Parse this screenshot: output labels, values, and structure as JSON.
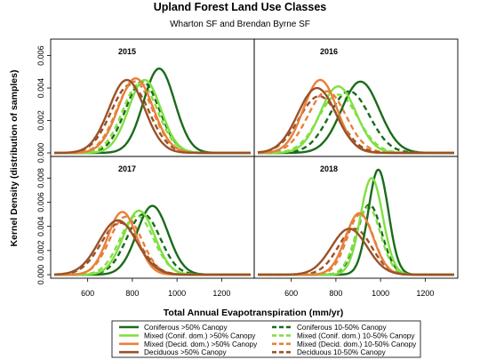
{
  "chart_data": {
    "type": "line",
    "title": "Upland Forest Land Use Classes",
    "subtitle": "Wharton SF and Brendan Byrne SF",
    "xlabel": "Total Annual Evapotranspiration (mm/yr)",
    "ylabel": "Kernel Density (distribution of samples)",
    "xlim": [
      450,
      1330
    ],
    "x_ticks": [
      "600",
      "800",
      "1000",
      "1200"
    ],
    "panels": [
      {
        "label": "2015",
        "ylim": [
          0,
          0.0068
        ],
        "y_ticks": [
          "0.000",
          "0.002",
          "0.004",
          "0.006"
        ],
        "series": [
          {
            "name": "Coniferous >50% Canopy",
            "mean": 920,
            "sd": 70,
            "peak": 0.0052
          },
          {
            "name": "Mixed (Conif. dom.) >50% Canopy",
            "mean": 855,
            "sd": 72,
            "peak": 0.0045
          },
          {
            "name": "Mixed (Decid. dom.) >50% Canopy",
            "mean": 815,
            "sd": 78,
            "peak": 0.0046
          },
          {
            "name": "Deciduous >50% Canopy",
            "mean": 775,
            "sd": 80,
            "peak": 0.0045
          },
          {
            "name": "Coniferous 10-50% Canopy",
            "mean": 845,
            "sd": 76,
            "peak": 0.0044
          },
          {
            "name": "Mixed (Conif. dom.) 10-50% Canopy",
            "mean": 835,
            "sd": 78,
            "peak": 0.0043
          },
          {
            "name": "Mixed (Decid. dom.) 10-50% Canopy",
            "mean": 810,
            "sd": 80,
            "peak": 0.0044
          },
          {
            "name": "Deciduous 10-50% Canopy",
            "mean": 790,
            "sd": 85,
            "peak": 0.0042
          }
        ]
      },
      {
        "label": "2016",
        "ylim": [
          0,
          0.0068
        ],
        "y_ticks": [
          "0.000",
          "0.002",
          "0.004",
          "0.006"
        ],
        "series": [
          {
            "name": "Coniferous >50% Canopy",
            "mean": 910,
            "sd": 85,
            "peak": 0.0044
          },
          {
            "name": "Mixed (Conif. dom.) >50% Canopy",
            "mean": 810,
            "sd": 80,
            "peak": 0.0041
          },
          {
            "name": "Mixed (Decid. dom.) >50% Canopy",
            "mean": 730,
            "sd": 75,
            "peak": 0.0045
          },
          {
            "name": "Deciduous >50% Canopy",
            "mean": 715,
            "sd": 85,
            "peak": 0.004
          },
          {
            "name": "Coniferous 10-50% Canopy",
            "mean": 860,
            "sd": 90,
            "peak": 0.0038
          },
          {
            "name": "Mixed (Conif. dom.) 10-50% Canopy",
            "mean": 810,
            "sd": 88,
            "peak": 0.0036
          },
          {
            "name": "Mixed (Decid. dom.) 10-50% Canopy",
            "mean": 760,
            "sd": 85,
            "peak": 0.0038
          },
          {
            "name": "Deciduous 10-50% Canopy",
            "mean": 725,
            "sd": 90,
            "peak": 0.0035
          }
        ]
      },
      {
        "label": "2017",
        "ylim": [
          0,
          0.0095
        ],
        "y_ticks": [
          "0.000",
          "0.002",
          "0.004",
          "0.006",
          "0.008"
        ],
        "series": [
          {
            "name": "Coniferous >50% Canopy",
            "mean": 890,
            "sd": 70,
            "peak": 0.0057
          },
          {
            "name": "Mixed (Conif. dom.) >50% Canopy",
            "mean": 830,
            "sd": 70,
            "peak": 0.0053
          },
          {
            "name": "Mixed (Decid. dom.) >50% Canopy",
            "mean": 755,
            "sd": 65,
            "peak": 0.0052
          },
          {
            "name": "Deciduous >50% Canopy",
            "mean": 735,
            "sd": 85,
            "peak": 0.0045
          },
          {
            "name": "Coniferous 10-50% Canopy",
            "mean": 850,
            "sd": 75,
            "peak": 0.005
          },
          {
            "name": "Mixed (Conif. dom.) 10-50% Canopy",
            "mean": 820,
            "sd": 75,
            "peak": 0.0049
          },
          {
            "name": "Mixed (Decid. dom.) 10-50% Canopy",
            "mean": 770,
            "sd": 72,
            "peak": 0.0048
          },
          {
            "name": "Deciduous 10-50% Canopy",
            "mean": 745,
            "sd": 85,
            "peak": 0.0043
          }
        ]
      },
      {
        "label": "2018",
        "ylim": [
          0,
          0.0095
        ],
        "y_ticks": [
          "0.000",
          "0.002",
          "0.004",
          "0.006",
          "0.008"
        ],
        "series": [
          {
            "name": "Coniferous >50% Canopy",
            "mean": 990,
            "sd": 45,
            "peak": 0.0087
          },
          {
            "name": "Mixed (Conif. dom.) >50% Canopy",
            "mean": 960,
            "sd": 50,
            "peak": 0.008
          },
          {
            "name": "Mixed (Decid. dom.) >50% Canopy",
            "mean": 905,
            "sd": 62,
            "peak": 0.0051
          },
          {
            "name": "Deciduous >50% Canopy",
            "mean": 860,
            "sd": 80,
            "peak": 0.0038
          },
          {
            "name": "Coniferous 10-50% Canopy",
            "mean": 950,
            "sd": 55,
            "peak": 0.0058
          },
          {
            "name": "Mixed (Conif. dom.) 10-50% Canopy",
            "mean": 945,
            "sd": 55,
            "peak": 0.0056
          },
          {
            "name": "Mixed (Decid. dom.) 10-50% Canopy",
            "mean": 910,
            "sd": 60,
            "peak": 0.005
          },
          {
            "name": "Deciduous 10-50% Canopy",
            "mean": 885,
            "sd": 75,
            "peak": 0.0038
          }
        ]
      }
    ],
    "legend": {
      "placement": "bottom",
      "entries": [
        {
          "label": "Coniferous >50% Canopy",
          "color": "#1a6b1a",
          "style": "solid"
        },
        {
          "label": "Mixed (Conif. dom.) >50% Canopy",
          "color": "#80e040",
          "style": "solid"
        },
        {
          "label": "Mixed (Decid. dom.) >50% Canopy",
          "color": "#e8803a",
          "style": "solid"
        },
        {
          "label": "Deciduous >50% Canopy",
          "color": "#9a5228",
          "style": "solid"
        },
        {
          "label": "Coniferous 10-50% Canopy",
          "color": "#1a6b1a",
          "style": "dashed"
        },
        {
          "label": "Mixed (Conif. dom.) 10-50% Canopy",
          "color": "#80e040",
          "style": "dashed"
        },
        {
          "label": "Mixed (Decid. dom.) 10-50% Canopy",
          "color": "#e8803a",
          "style": "dashed"
        },
        {
          "label": "Deciduous 10-50% Canopy",
          "color": "#9a5228",
          "style": "dashed"
        }
      ]
    }
  }
}
